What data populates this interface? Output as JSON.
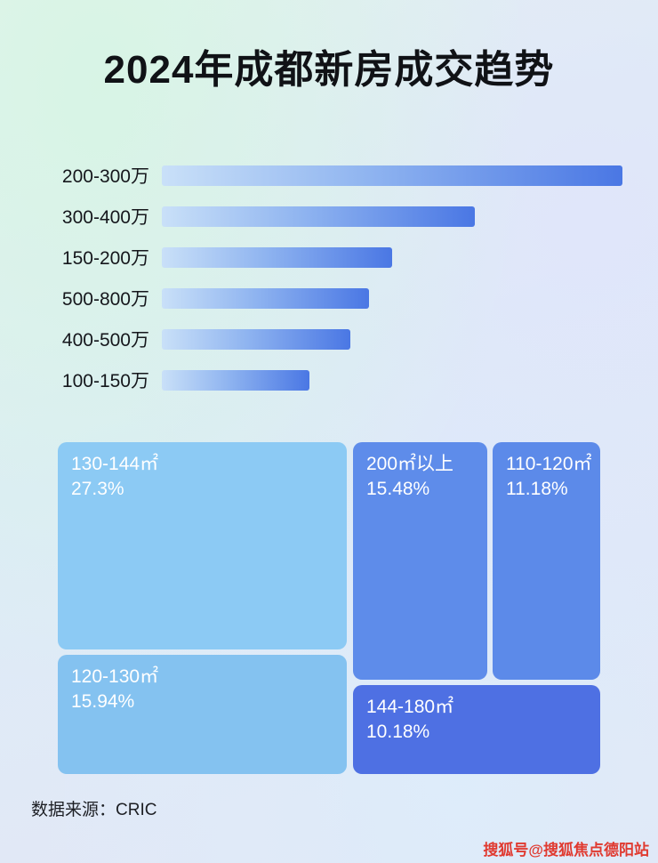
{
  "title": "2024年成都新房成交趋势",
  "colors": {
    "bar_gradient_start": "#c9e0f8",
    "bar_gradient_end": "#4a77e4",
    "treemap_light_blue_1": "#8ccaf4",
    "treemap_light_blue_2": "#84c2f0",
    "treemap_medium_blue": "#5e8cea",
    "treemap_dark_blue": "#4e70e3",
    "title_color": "#101216",
    "watermark_red": "#e03a30"
  },
  "chart_data": [
    {
      "type": "bar",
      "orientation": "horizontal",
      "title": "2024年成都新房成交趋势",
      "categories": [
        "200-300万",
        "300-400万",
        "150-200万",
        "500-800万",
        "400-500万",
        "100-150万"
      ],
      "values": [
        100,
        68,
        50,
        45,
        41,
        32
      ],
      "unit": "relative bar width % (no axis labels shown)",
      "xlim": [
        0,
        100
      ],
      "grid": false,
      "legend": false
    },
    {
      "type": "treemap",
      "items": [
        {
          "label": "130-144㎡",
          "value": "27.3%"
        },
        {
          "label": "120-130㎡",
          "value": "15.94%"
        },
        {
          "label": "200㎡以上",
          "value": "15.48%"
        },
        {
          "label": "110-120㎡",
          "value": "11.18%"
        },
        {
          "label": "144-180㎡",
          "value": "10.18%"
        }
      ]
    }
  ],
  "footer": {
    "source": "数据来源：CRIC"
  },
  "watermark": "搜狐号@搜狐焦点德阳站"
}
